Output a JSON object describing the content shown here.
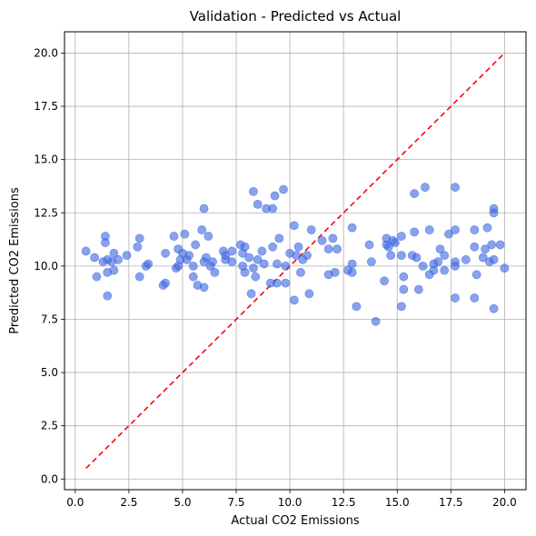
{
  "chart_data": {
    "type": "scatter",
    "title": "Validation - Predicted vs Actual",
    "xlabel": "Actual CO2 Emissions",
    "ylabel": "Predicted CO2 Emissions",
    "xlim": [
      -0.5,
      21.0
    ],
    "ylim": [
      -0.5,
      21.0
    ],
    "xticks": [
      "0.0",
      "2.5",
      "5.0",
      "7.5",
      "10.0",
      "12.5",
      "15.0",
      "17.5",
      "20.0"
    ],
    "yticks": [
      "0.0",
      "2.5",
      "5.0",
      "7.5",
      "10.0",
      "12.5",
      "15.0",
      "17.5",
      "20.0"
    ],
    "grid": true,
    "colors": {
      "points": "#4169e1",
      "reference_line": "#ff0000"
    },
    "reference_line": {
      "style": "dashed",
      "x": [
        0.5,
        20.0
      ],
      "y": [
        0.5,
        20.0
      ]
    },
    "points": [
      {
        "x": 0.5,
        "y": 10.7
      },
      {
        "x": 0.9,
        "y": 10.4
      },
      {
        "x": 1.0,
        "y": 9.5
      },
      {
        "x": 1.3,
        "y": 10.2
      },
      {
        "x": 1.4,
        "y": 11.4
      },
      {
        "x": 1.4,
        "y": 11.1
      },
      {
        "x": 1.5,
        "y": 10.3
      },
      {
        "x": 1.5,
        "y": 9.7
      },
      {
        "x": 1.5,
        "y": 8.6
      },
      {
        "x": 1.7,
        "y": 10.2
      },
      {
        "x": 1.8,
        "y": 10.6
      },
      {
        "x": 1.8,
        "y": 9.8
      },
      {
        "x": 2.0,
        "y": 10.3
      },
      {
        "x": 2.4,
        "y": 10.5
      },
      {
        "x": 2.9,
        "y": 10.9
      },
      {
        "x": 3.0,
        "y": 11.3
      },
      {
        "x": 3.0,
        "y": 9.5
      },
      {
        "x": 3.3,
        "y": 10.0
      },
      {
        "x": 3.4,
        "y": 10.1
      },
      {
        "x": 4.1,
        "y": 9.1
      },
      {
        "x": 4.2,
        "y": 9.2
      },
      {
        "x": 4.2,
        "y": 10.6
      },
      {
        "x": 4.6,
        "y": 11.4
      },
      {
        "x": 4.7,
        "y": 9.9
      },
      {
        "x": 4.8,
        "y": 10.8
      },
      {
        "x": 4.8,
        "y": 10.0
      },
      {
        "x": 4.9,
        "y": 10.3
      },
      {
        "x": 5.0,
        "y": 10.6
      },
      {
        "x": 5.1,
        "y": 11.5
      },
      {
        "x": 5.2,
        "y": 10.3
      },
      {
        "x": 5.3,
        "y": 10.5
      },
      {
        "x": 5.5,
        "y": 10.0
      },
      {
        "x": 5.5,
        "y": 9.5
      },
      {
        "x": 5.6,
        "y": 11.0
      },
      {
        "x": 5.7,
        "y": 9.1
      },
      {
        "x": 5.9,
        "y": 11.7
      },
      {
        "x": 6.0,
        "y": 12.7
      },
      {
        "x": 6.0,
        "y": 10.2
      },
      {
        "x": 6.0,
        "y": 9.0
      },
      {
        "x": 6.1,
        "y": 10.4
      },
      {
        "x": 6.2,
        "y": 11.4
      },
      {
        "x": 6.3,
        "y": 10.0
      },
      {
        "x": 6.4,
        "y": 10.2
      },
      {
        "x": 6.5,
        "y": 9.7
      },
      {
        "x": 6.9,
        "y": 10.7
      },
      {
        "x": 7.0,
        "y": 10.5
      },
      {
        "x": 7.0,
        "y": 10.3
      },
      {
        "x": 7.3,
        "y": 10.7
      },
      {
        "x": 7.3,
        "y": 10.2
      },
      {
        "x": 7.7,
        "y": 11.0
      },
      {
        "x": 7.8,
        "y": 10.6
      },
      {
        "x": 7.8,
        "y": 10.0
      },
      {
        "x": 7.9,
        "y": 10.9
      },
      {
        "x": 7.9,
        "y": 9.7
      },
      {
        "x": 8.1,
        "y": 10.4
      },
      {
        "x": 8.2,
        "y": 8.7
      },
      {
        "x": 8.3,
        "y": 13.5
      },
      {
        "x": 8.3,
        "y": 9.9
      },
      {
        "x": 8.4,
        "y": 9.5
      },
      {
        "x": 8.5,
        "y": 12.9
      },
      {
        "x": 8.5,
        "y": 10.3
      },
      {
        "x": 8.7,
        "y": 10.7
      },
      {
        "x": 8.8,
        "y": 10.1
      },
      {
        "x": 8.9,
        "y": 12.7
      },
      {
        "x": 9.1,
        "y": 9.2
      },
      {
        "x": 9.2,
        "y": 12.7
      },
      {
        "x": 9.2,
        "y": 10.9
      },
      {
        "x": 9.3,
        "y": 13.3
      },
      {
        "x": 9.4,
        "y": 10.1
      },
      {
        "x": 9.4,
        "y": 9.2
      },
      {
        "x": 9.5,
        "y": 11.3
      },
      {
        "x": 9.7,
        "y": 13.6
      },
      {
        "x": 9.8,
        "y": 10.0
      },
      {
        "x": 9.8,
        "y": 9.2
      },
      {
        "x": 10.0,
        "y": 10.6
      },
      {
        "x": 10.2,
        "y": 11.9
      },
      {
        "x": 10.2,
        "y": 8.4
      },
      {
        "x": 10.3,
        "y": 10.5
      },
      {
        "x": 10.4,
        "y": 10.9
      },
      {
        "x": 10.5,
        "y": 9.7
      },
      {
        "x": 10.6,
        "y": 10.3
      },
      {
        "x": 10.8,
        "y": 10.5
      },
      {
        "x": 10.9,
        "y": 8.7
      },
      {
        "x": 11.0,
        "y": 11.7
      },
      {
        "x": 11.5,
        "y": 11.2
      },
      {
        "x": 11.8,
        "y": 10.8
      },
      {
        "x": 11.8,
        "y": 9.6
      },
      {
        "x": 12.0,
        "y": 11.3
      },
      {
        "x": 12.1,
        "y": 9.7
      },
      {
        "x": 12.2,
        "y": 10.8
      },
      {
        "x": 12.7,
        "y": 9.8
      },
      {
        "x": 12.9,
        "y": 11.8
      },
      {
        "x": 12.9,
        "y": 10.1
      },
      {
        "x": 12.9,
        "y": 9.7
      },
      {
        "x": 13.1,
        "y": 8.1
      },
      {
        "x": 13.7,
        "y": 11.0
      },
      {
        "x": 13.8,
        "y": 10.2
      },
      {
        "x": 14.0,
        "y": 7.4
      },
      {
        "x": 14.4,
        "y": 9.3
      },
      {
        "x": 14.5,
        "y": 11.3
      },
      {
        "x": 14.5,
        "y": 11.0
      },
      {
        "x": 14.6,
        "y": 10.9
      },
      {
        "x": 14.7,
        "y": 10.5
      },
      {
        "x": 14.8,
        "y": 11.2
      },
      {
        "x": 14.9,
        "y": 11.1
      },
      {
        "x": 15.2,
        "y": 11.4
      },
      {
        "x": 15.2,
        "y": 10.5
      },
      {
        "x": 15.2,
        "y": 8.1
      },
      {
        "x": 15.3,
        "y": 9.5
      },
      {
        "x": 15.3,
        "y": 8.9
      },
      {
        "x": 15.7,
        "y": 10.5
      },
      {
        "x": 15.8,
        "y": 13.4
      },
      {
        "x": 15.8,
        "y": 11.6
      },
      {
        "x": 15.9,
        "y": 10.4
      },
      {
        "x": 16.0,
        "y": 8.9
      },
      {
        "x": 16.2,
        "y": 10.0
      },
      {
        "x": 16.3,
        "y": 13.7
      },
      {
        "x": 16.5,
        "y": 11.7
      },
      {
        "x": 16.5,
        "y": 9.6
      },
      {
        "x": 16.7,
        "y": 10.1
      },
      {
        "x": 16.7,
        "y": 9.8
      },
      {
        "x": 16.9,
        "y": 10.2
      },
      {
        "x": 17.0,
        "y": 10.8
      },
      {
        "x": 17.2,
        "y": 10.5
      },
      {
        "x": 17.2,
        "y": 9.8
      },
      {
        "x": 17.4,
        "y": 11.5
      },
      {
        "x": 17.7,
        "y": 13.7
      },
      {
        "x": 17.7,
        "y": 11.7
      },
      {
        "x": 17.7,
        "y": 10.2
      },
      {
        "x": 17.7,
        "y": 10.0
      },
      {
        "x": 17.7,
        "y": 8.5
      },
      {
        "x": 18.2,
        "y": 10.3
      },
      {
        "x": 18.6,
        "y": 11.7
      },
      {
        "x": 18.6,
        "y": 10.9
      },
      {
        "x": 18.6,
        "y": 8.5
      },
      {
        "x": 18.7,
        "y": 9.6
      },
      {
        "x": 19.0,
        "y": 10.4
      },
      {
        "x": 19.1,
        "y": 10.8
      },
      {
        "x": 19.2,
        "y": 11.8
      },
      {
        "x": 19.3,
        "y": 10.2
      },
      {
        "x": 19.4,
        "y": 11.0
      },
      {
        "x": 19.5,
        "y": 12.5
      },
      {
        "x": 19.5,
        "y": 12.7
      },
      {
        "x": 19.5,
        "y": 10.3
      },
      {
        "x": 19.5,
        "y": 8.0
      },
      {
        "x": 19.8,
        "y": 11.0
      },
      {
        "x": 20.0,
        "y": 9.9
      }
    ]
  }
}
